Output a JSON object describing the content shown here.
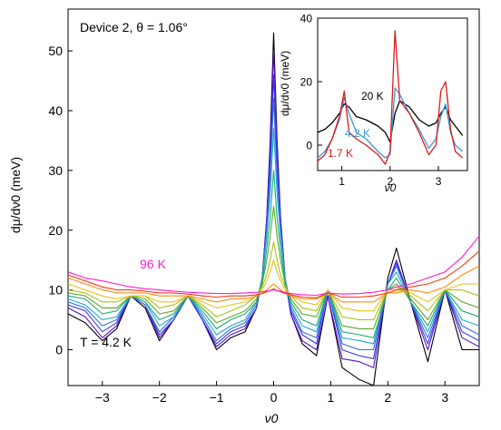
{
  "chart_data": [
    {
      "type": "line",
      "panel": "main",
      "annotation": "Device 2,  θ = 1.06°",
      "xlabel": "ν0",
      "ylabel": "dμ/dν0 (meV)",
      "xlim": [
        -3.6,
        3.6
      ],
      "ylim": [
        -6,
        57
      ],
      "xticks": [
        -3,
        -2,
        -1,
        0,
        1,
        2,
        3
      ],
      "yticks": [
        0,
        10,
        20,
        30,
        40,
        50
      ],
      "labels": {
        "low_T": "T = 4.2 K",
        "high_T": "96 K"
      },
      "series_colors": [
        "#000000",
        "#5b0fd0",
        "#3a3ae6",
        "#2f6fe6",
        "#1ca6d0",
        "#1fa87a",
        "#5aa82a",
        "#a8c21a",
        "#e8c21a",
        "#ff8a10",
        "#f23a10",
        "#ff1ec8"
      ],
      "x": [
        -3.6,
        -3.3,
        -3.0,
        -2.75,
        -2.5,
        -2.25,
        -2.0,
        -1.75,
        -1.5,
        -1.25,
        -1.0,
        -0.75,
        -0.5,
        -0.3,
        -0.2,
        -0.12,
        -0.06,
        0.0,
        0.06,
        0.12,
        0.2,
        0.3,
        0.5,
        0.75,
        0.95,
        1.2,
        1.5,
        1.75,
        2.0,
        2.15,
        2.4,
        2.7,
        3.0,
        3.3,
        3.6
      ],
      "series": [
        {
          "values": [
            6,
            4.5,
            1.5,
            3.5,
            9,
            7,
            1.5,
            5,
            9,
            5,
            0,
            2,
            3,
            7,
            12,
            22,
            35,
            53,
            35,
            22,
            12,
            6,
            1,
            -1,
            9,
            -3,
            -5,
            -6,
            12,
            17,
            8,
            -2,
            10,
            0,
            0
          ]
        },
        {
          "values": [
            7,
            5.5,
            2,
            4,
            9,
            7.5,
            2,
            5,
            9,
            5,
            0.5,
            2.5,
            3.5,
            7,
            12,
            22,
            34,
            50,
            34,
            22,
            12,
            6,
            1.5,
            0,
            9,
            -1.5,
            -2,
            -3,
            11,
            15,
            8,
            0,
            10,
            2,
            0.5
          ]
        },
        {
          "values": [
            7.5,
            6.5,
            3,
            4.5,
            9,
            7.5,
            2.5,
            5,
            9,
            5,
            1,
            3,
            4,
            7,
            12,
            21,
            31,
            46,
            31,
            21,
            12,
            6.5,
            2.5,
            1,
            10,
            0,
            -1,
            -1.5,
            11,
            14.5,
            8,
            1,
            10,
            3,
            1.5
          ]
        },
        {
          "values": [
            8,
            7,
            4,
            5,
            9,
            7.5,
            3,
            5.5,
            9,
            5.5,
            1.5,
            3.5,
            4.5,
            7.5,
            12,
            20,
            29,
            42,
            29,
            20,
            12,
            7,
            3,
            2,
            10,
            1,
            0,
            0,
            11,
            14,
            8,
            2,
            10,
            4,
            2.5
          ]
        },
        {
          "values": [
            8.5,
            7.5,
            5,
            5.5,
            9,
            8,
            4,
            5.5,
            9,
            6,
            2.5,
            4,
            5,
            8,
            12,
            19,
            26,
            37,
            26,
            19,
            12,
            7.5,
            4,
            3,
            10,
            2,
            1.5,
            1,
            11,
            13,
            8,
            3,
            10,
            5,
            4
          ]
        },
        {
          "values": [
            9,
            8.5,
            6,
            6.5,
            9,
            8,
            5,
            6,
            9,
            6.5,
            3.5,
            5,
            6,
            8,
            11,
            17,
            22,
            30,
            22,
            17,
            11,
            8,
            5,
            4,
            10,
            3,
            2.5,
            2,
            10,
            12,
            8,
            4,
            10,
            6.5,
            5.5
          ]
        },
        {
          "values": [
            9.5,
            9,
            7,
            7,
            9,
            8.5,
            6,
            6.5,
            9,
            7,
            4.5,
            5.5,
            6.5,
            8.5,
            11,
            15,
            19,
            24,
            19,
            15,
            11,
            8.5,
            6,
            5.5,
            10,
            4,
            3.5,
            3.5,
            10,
            11,
            8.5,
            5,
            10,
            8,
            7
          ]
        },
        {
          "values": [
            10,
            9.5,
            8,
            8,
            9,
            9,
            7,
            7.5,
            9,
            7.5,
            5.5,
            6.5,
            7.5,
            9,
            10.5,
            12.5,
            15,
            18,
            15,
            12.5,
            10.5,
            9,
            7,
            6.5,
            10,
            5.5,
            5,
            5,
            10,
            10.5,
            9,
            6.5,
            10,
            10,
            9
          ]
        },
        {
          "values": [
            11,
            10,
            9,
            8.5,
            9,
            9,
            8,
            8,
            9,
            8,
            7,
            7.5,
            8,
            9,
            10,
            11.5,
            13,
            15,
            13,
            11.5,
            10,
            9,
            8,
            7.5,
            10,
            7,
            6.5,
            6.5,
            10,
            10,
            9.5,
            8,
            10,
            11,
            11
          ]
        },
        {
          "values": [
            12,
            11,
            10,
            9.5,
            9.5,
            9.5,
            9,
            9,
            9,
            8.5,
            8,
            8.5,
            8.5,
            9,
            9.5,
            10,
            10.5,
            11,
            10.5,
            10,
            9.5,
            9,
            8.5,
            8.5,
            9.5,
            8,
            8,
            8,
            9.5,
            9.5,
            10,
            9.5,
            10.5,
            12.5,
            14
          ]
        },
        {
          "values": [
            12.5,
            11.5,
            10.5,
            10,
            10,
            9.8,
            9.5,
            9.5,
            9.3,
            9,
            8.8,
            9,
            9,
            9.2,
            9.4,
            9.7,
            9.9,
            10.2,
            9.9,
            9.7,
            9.4,
            9.2,
            8.8,
            8.7,
            9.5,
            8.8,
            8.8,
            9,
            9.5,
            10,
            10.5,
            11,
            12,
            14,
            16.5
          ]
        },
        {
          "values": [
            13,
            12,
            11.5,
            11,
            10.5,
            10.2,
            10,
            9.8,
            9.6,
            9.5,
            9.4,
            9.4,
            9.5,
            9.6,
            9.7,
            9.8,
            9.9,
            10,
            9.9,
            9.8,
            9.6,
            9.4,
            9.2,
            9.1,
            9.5,
            9.3,
            9.4,
            9.6,
            10,
            10.5,
            11,
            12,
            13,
            15.5,
            19
          ]
        }
      ]
    },
    {
      "type": "line",
      "panel": "inset",
      "xlabel": "ν0",
      "ylabel": "dμ/dν0 (meV)",
      "xlim": [
        0.5,
        3.6
      ],
      "ylim": [
        -8,
        40
      ],
      "xticks": [
        1,
        2,
        3
      ],
      "yticks": [
        0,
        20,
        40
      ],
      "x": [
        0.5,
        0.65,
        0.8,
        0.95,
        1.05,
        1.15,
        1.3,
        1.5,
        1.75,
        1.9,
        2.0,
        2.1,
        2.2,
        2.4,
        2.6,
        2.8,
        2.95,
        3.05,
        3.15,
        3.25,
        3.35,
        3.5
      ],
      "series": [
        {
          "name": "20 K",
          "color": "#000000",
          "values": [
            4,
            5,
            7,
            10,
            13,
            12,
            9,
            8,
            6,
            4,
            1,
            10,
            14,
            12,
            8,
            6,
            7,
            10,
            12,
            8,
            6,
            3
          ]
        },
        {
          "name": "4.2 K",
          "color": "#3a9ad8",
          "values": [
            -4,
            -2,
            2,
            8,
            15,
            10,
            4,
            2,
            -2,
            -4,
            -3,
            18,
            16,
            10,
            5,
            -1,
            2,
            9,
            13,
            4,
            0,
            -2
          ]
        },
        {
          "name": "1.7 K",
          "color": "#e01818",
          "values": [
            -5,
            -3,
            2,
            9,
            17,
            4,
            2,
            0,
            -3,
            -6,
            -2,
            36,
            14,
            10,
            4,
            -3,
            0,
            17,
            20,
            5,
            -2,
            -4
          ]
        }
      ]
    }
  ]
}
